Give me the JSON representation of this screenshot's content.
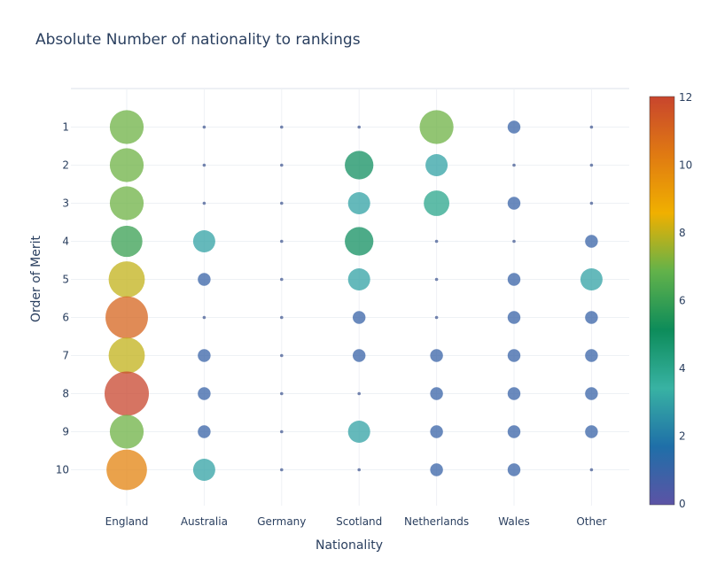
{
  "chart_data": {
    "type": "scatter",
    "subtype": "bubble",
    "title": "Absolute Number of nationality to rankings",
    "xlabel": "Nationality",
    "ylabel": "Order of Merit",
    "x_categories": [
      "England",
      "Australia",
      "Germany",
      "Scotland",
      "Netherlands",
      "Wales",
      "Other"
    ],
    "y_categories": [
      "1",
      "2",
      "3",
      "4",
      "5",
      "6",
      "7",
      "8",
      "9",
      "10"
    ],
    "grid": true,
    "colorbar": {
      "min": 0,
      "max": 12,
      "ticks": [
        "0",
        "2",
        "4",
        "6",
        "8",
        "10",
        "12"
      ],
      "colorscale": [
        "#5c53a5",
        "#1f6fa8",
        "#38b2a3",
        "#0d8c5a",
        "#62b24a",
        "#f0b000",
        "#e07a12",
        "#c8452d"
      ]
    },
    "matrix_note": "values[i][j]: count for nationality x_categories[j] at rank y_categories[i]",
    "values": [
      [
        7,
        0,
        0,
        0,
        7,
        1,
        0
      ],
      [
        7,
        0,
        0,
        5,
        3,
        0,
        0
      ],
      [
        7,
        0,
        0,
        3,
        4,
        1,
        0
      ],
      [
        6,
        3,
        0,
        5,
        0,
        0,
        1
      ],
      [
        8,
        1,
        0,
        3,
        0,
        1,
        3
      ],
      [
        11,
        0,
        0,
        1,
        0,
        1,
        1
      ],
      [
        8,
        1,
        0,
        1,
        1,
        1,
        1
      ],
      [
        12,
        1,
        0,
        0,
        1,
        1,
        1
      ],
      [
        7,
        1,
        0,
        3,
        1,
        1,
        1
      ],
      [
        10,
        3,
        0,
        0,
        1,
        1,
        0
      ]
    ]
  }
}
